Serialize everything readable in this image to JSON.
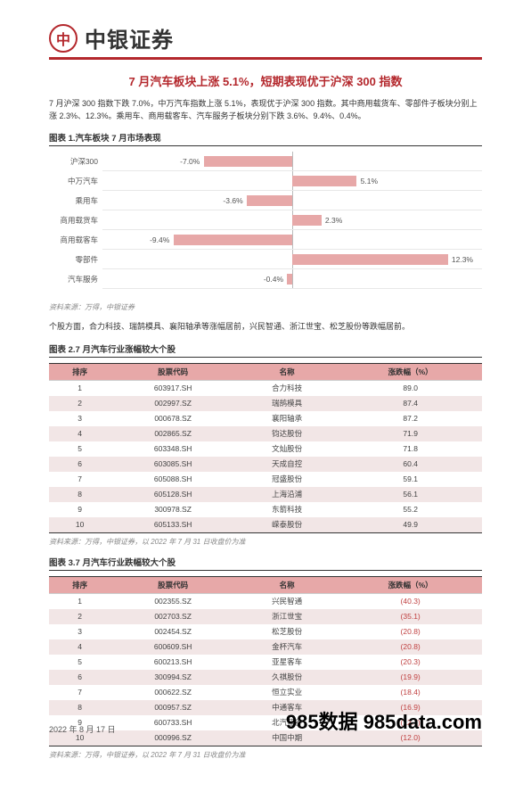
{
  "brand": {
    "name": "中银证券",
    "logo_glyph": "中"
  },
  "colors": {
    "accent": "#b4282d",
    "bar_fill": "#e7a8a8",
    "rule": "#b4282d",
    "grid": "#e8e8e8"
  },
  "title": "7 月汽车板块上涨 5.1%，短期表现优于沪深 300 指数",
  "para1": "7 月沪深 300 指数下跌 7.0%，中万汽车指数上涨 5.1%，表现优于沪深 300 指数。其中商用载货车、零部件子板块分别上涨 2.3%、12.3%。乘用车、商用载客车、汽车服务子板块分别下跌 3.6%、9.4%、0.4%。",
  "chart": {
    "title": "图表 1.汽车板块 7 月市场表现",
    "type": "bar-horizontal",
    "xlim": [
      -15,
      15
    ],
    "zero_pct_pos": 50,
    "scale_per_1pct": 3.333,
    "categories": [
      "沪深300",
      "中万汽车",
      "乘用车",
      "商用载货车",
      "商用载客车",
      "零部件",
      "汽车服务"
    ],
    "values": [
      -7.0,
      5.1,
      -3.6,
      2.3,
      -9.4,
      12.3,
      -0.4
    ],
    "bar_color": "#e7a8a8",
    "label_color": "#555555",
    "font_size": 8.5,
    "source": "资料来源：万得，中银证券"
  },
  "para2": "个股方面，合力科技、瑞鹄模具、襄阳轴承等涨幅居前，兴民智通、浙江世宝、松芝股份等跌幅居前。",
  "table1": {
    "title": "图表 2.7 月汽车行业涨幅较大个股",
    "headers": [
      "排序",
      "股票代码",
      "名称",
      "涨跌幅（%）"
    ],
    "rows": [
      [
        "1",
        "603917.SH",
        "合力科技",
        "89.0"
      ],
      [
        "2",
        "002997.SZ",
        "瑞鹄模具",
        "87.4"
      ],
      [
        "3",
        "000678.SZ",
        "襄阳轴承",
        "87.2"
      ],
      [
        "4",
        "002865.SZ",
        "钧达股份",
        "71.9"
      ],
      [
        "5",
        "603348.SH",
        "文灿股份",
        "71.8"
      ],
      [
        "6",
        "603085.SH",
        "天成自控",
        "60.4"
      ],
      [
        "7",
        "605088.SH",
        "冠盛股份",
        "59.1"
      ],
      [
        "8",
        "605128.SH",
        "上海沿浦",
        "56.1"
      ],
      [
        "9",
        "300978.SZ",
        "东箭科技",
        "55.2"
      ],
      [
        "10",
        "605133.SH",
        "嵘泰股份",
        "49.9"
      ]
    ],
    "source": "资料来源：万得，中银证券，以 2022 年 7 月 31 日收盘价为准"
  },
  "table2": {
    "title": "图表 3.7 月汽车行业跌幅较大个股",
    "headers": [
      "排序",
      "股票代码",
      "名称",
      "涨跌幅（%）"
    ],
    "rows": [
      [
        "1",
        "002355.SZ",
        "兴民智通",
        "(40.3)"
      ],
      [
        "2",
        "002703.SZ",
        "浙江世宝",
        "(35.1)"
      ],
      [
        "3",
        "002454.SZ",
        "松芝股份",
        "(20.8)"
      ],
      [
        "4",
        "600609.SH",
        "金杯汽车",
        "(20.8)"
      ],
      [
        "5",
        "600213.SH",
        "亚星客车",
        "(20.3)"
      ],
      [
        "6",
        "300994.SZ",
        "久祺股份",
        "(19.9)"
      ],
      [
        "7",
        "000622.SZ",
        "恒立实业",
        "(18.4)"
      ],
      [
        "8",
        "000957.SZ",
        "中通客车",
        "(16.9)"
      ],
      [
        "9",
        "600733.SH",
        "北汽蓝谷",
        "(12.7)"
      ],
      [
        "10",
        "000996.SZ",
        "中国中期",
        "(12.0)"
      ]
    ],
    "source": "资料来源：万得，中银证券，以 2022 年 7 月 31 日收盘价为准"
  },
  "footer": {
    "date": "2022 年 8 月 17 日",
    "watermark": "985数据 985data.com"
  }
}
